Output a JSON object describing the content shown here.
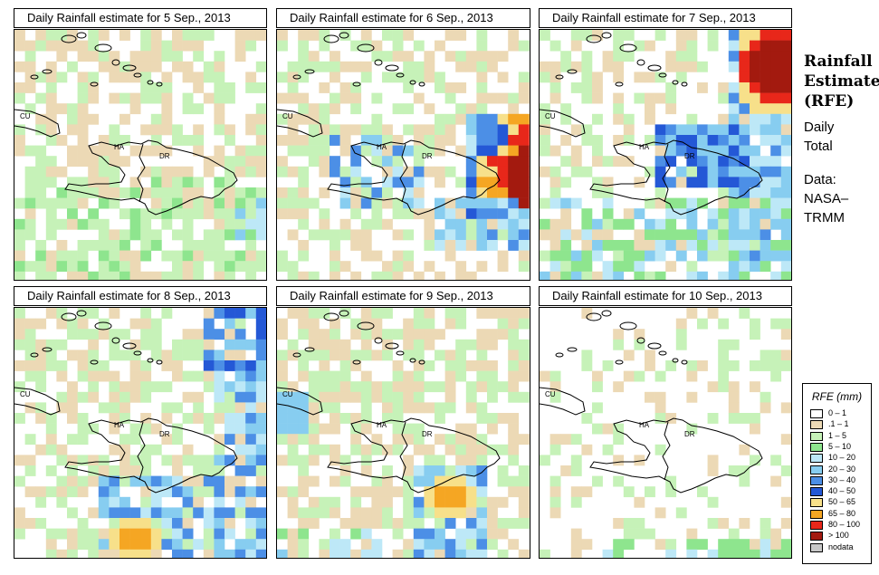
{
  "panels": [
    {
      "title": "Daily Rainfall estimate for  5 Sep., 2013"
    },
    {
      "title": "Daily Rainfall estimate for  6 Sep., 2013"
    },
    {
      "title": "Daily Rainfall estimate for  7 Sep., 2013"
    },
    {
      "title": "Daily Rainfall estimate for  8 Sep., 2013"
    },
    {
      "title": "Daily Rainfall estimate for  9 Sep., 2013"
    },
    {
      "title": "Daily Rainfall estimate for  10 Sep., 2013"
    }
  ],
  "map_labels": {
    "cuba": "CU",
    "haiti": "HA",
    "dominican_republic": "DR"
  },
  "sidebar": {
    "title_line1": "Rainfall",
    "title_line2": "Estimate",
    "title_line3": "(RFE)",
    "daily": "Daily",
    "total": "Total",
    "data": "Data:",
    "nasa": "NASA–",
    "trmm": "TRMM"
  },
  "legend": {
    "title": "RFE (mm)",
    "items": [
      {
        "label": "0 – 1",
        "color": "#ffffff"
      },
      {
        "label": ".1 – 1",
        "color": "#ecd9b5"
      },
      {
        "label": "1 – 5",
        "color": "#c6f2b8"
      },
      {
        "label": "5 – 10",
        "color": "#8ee58e"
      },
      {
        "label": "10 – 20",
        "color": "#bde8f7"
      },
      {
        "label": "20 – 30",
        "color": "#87cdf0"
      },
      {
        "label": "30 – 40",
        "color": "#4c8fe6"
      },
      {
        "label": "40 – 50",
        "color": "#2458d6"
      },
      {
        "label": "50 – 65",
        "color": "#f7e08a"
      },
      {
        "label": "65 – 80",
        "color": "#f5a623"
      },
      {
        "label": "80 – 100",
        "color": "#e8271a"
      },
      {
        "label": "> 100",
        "color": "#a31a0f"
      },
      {
        "label": "nodata",
        "color": "#c8c8c8"
      }
    ]
  }
}
